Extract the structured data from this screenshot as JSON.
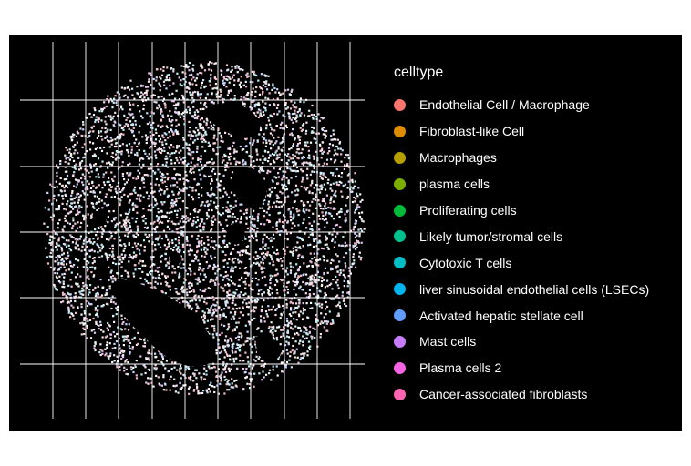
{
  "chart_data": {
    "type": "scatter",
    "title": "",
    "xlabel": "",
    "ylabel": "",
    "background": "#000000",
    "grid": true,
    "grid_color": "#ffffff",
    "legend_position": "right",
    "legend": {
      "title": "celltype",
      "items": [
        {
          "label": "Endothelial Cell / Macrophage",
          "color": "#F8766D"
        },
        {
          "label": "Fibroblast-like Cell",
          "color": "#DE8C00"
        },
        {
          "label": "Macrophages",
          "color": "#B79F00"
        },
        {
          "label": "plasma cells",
          "color": "#7CAE00"
        },
        {
          "label": "Proliferating cells",
          "color": "#00BA38"
        },
        {
          "label": "Likely tumor/stromal cells",
          "color": "#00C08B"
        },
        {
          "label": "Cytotoxic T cells",
          "color": "#00BFC4"
        },
        {
          "label": "liver sinusoidal endothelial cells (LSECs)",
          "color": "#00B4F0"
        },
        {
          "label": "Activated hepatic stellate cell",
          "color": "#619CFF"
        },
        {
          "label": "Mast cells",
          "color": "#C77CFF"
        },
        {
          "label": "Plasma cells 2",
          "color": "#F564E3"
        },
        {
          "label": "Cancer-associated fibroblasts",
          "color": "#FF64B0"
        }
      ]
    },
    "series_shape": "circular tissue section of densely packed cell points, predominantly pastel pink, white and light cyan, with dark gaps (vessels/lumens) in the interior"
  }
}
